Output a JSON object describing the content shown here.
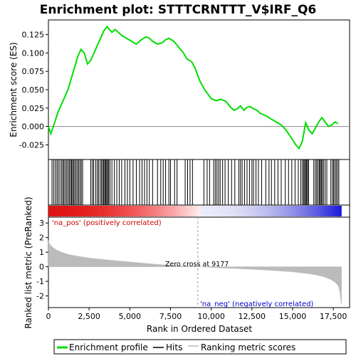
{
  "chart_data": {
    "type": "line",
    "title": "Enrichment plot: STTTCRNTTT_V$IRF_Q6",
    "xlabel": "Rank in Ordered Dataset",
    "x_range": [
      0,
      18500
    ],
    "x_ticks": [
      0,
      2500,
      5000,
      7500,
      10000,
      12500,
      15000,
      17500
    ],
    "x_tick_labels": [
      "0",
      "2,500",
      "5,000",
      "7,500",
      "10,000",
      "12,500",
      "15,000",
      "17,500"
    ],
    "panels": {
      "enrichment": {
        "ylabel": "Enrichment score (ES)",
        "ylim": [
          -0.045,
          0.145
        ],
        "y_ticks": [
          -0.025,
          0.0,
          0.025,
          0.05,
          0.075,
          0.1,
          0.125
        ],
        "y_tick_labels": [
          "-0.025",
          "0.000",
          "0.025",
          "0.050",
          "0.075",
          "0.100",
          "0.125"
        ],
        "series": [
          {
            "name": "Enrichment profile",
            "color": "#00dd00",
            "x": [
              0,
              150,
              300,
              450,
              600,
              800,
              1000,
              1200,
              1400,
              1600,
              1800,
              2000,
              2200,
              2400,
              2600,
              2800,
              3000,
              3200,
              3400,
              3600,
              3700,
              3900,
              4100,
              4300,
              4500,
              4800,
              5100,
              5400,
              5700,
              6000,
              6200,
              6400,
              6700,
              7000,
              7200,
              7400,
              7700,
              8000,
              8300,
              8500,
              8800,
              9000,
              9300,
              9600,
              10000,
              10300,
              10600,
              10900,
              11200,
              11400,
              11600,
              11800,
              12000,
              12200,
              12400,
              12600,
              12800,
              13000,
              13200,
              13400,
              13700,
              14000,
              14300,
              14600,
              14900,
              15200,
              15400,
              15600,
              15800,
              16000,
              16200,
              16400,
              16600,
              16800,
              17000,
              17200,
              17400,
              17600,
              17800
            ],
            "y": [
              0.0,
              -0.01,
              0.0,
              0.01,
              0.02,
              0.03,
              0.04,
              0.05,
              0.065,
              0.08,
              0.095,
              0.105,
              0.1,
              0.085,
              0.09,
              0.1,
              0.11,
              0.12,
              0.13,
              0.136,
              0.133,
              0.128,
              0.132,
              0.128,
              0.124,
              0.12,
              0.116,
              0.112,
              0.118,
              0.122,
              0.12,
              0.116,
              0.112,
              0.114,
              0.118,
              0.12,
              0.116,
              0.108,
              0.1,
              0.092,
              0.088,
              0.08,
              0.062,
              0.05,
              0.038,
              0.035,
              0.037,
              0.034,
              0.026,
              0.022,
              0.024,
              0.028,
              0.022,
              0.026,
              0.027,
              0.024,
              0.022,
              0.018,
              0.016,
              0.014,
              0.01,
              0.006,
              0.002,
              -0.005,
              -0.015,
              -0.025,
              -0.03,
              -0.02,
              0.005,
              -0.005,
              -0.01,
              -0.002,
              0.006,
              0.012,
              0.006,
              0.0,
              0.002,
              0.006,
              0.004
            ]
          }
        ]
      },
      "ranked_metric": {
        "ylabel": "Ranked list metric (PreRanked)",
        "ylim": [
          -2.8,
          3.4
        ],
        "y_ticks": [
          -2,
          -1,
          0,
          1,
          2,
          3
        ],
        "y_tick_labels": [
          "-2",
          "-1",
          "0",
          "1",
          "2",
          "3"
        ],
        "series": [
          {
            "name": "Ranking metric scores",
            "color": "#bbbbbb",
            "x": [
              0,
              50,
              150,
              300,
              500,
              800,
              1200,
              1800,
              2500,
              3500,
              4500,
              5500,
              6500,
              7500,
              8500,
              9177,
              10000,
              11000,
              12000,
              13000,
              14000,
              15000,
              15800,
              16400,
              16900,
              17300,
              17600,
              17800,
              17900,
              17950,
              18000
            ],
            "y": [
              1.8,
              1.6,
              1.45,
              1.3,
              1.15,
              1.0,
              0.85,
              0.72,
              0.6,
              0.48,
              0.38,
              0.28,
              0.18,
              0.1,
              0.04,
              0.0,
              -0.05,
              -0.1,
              -0.15,
              -0.2,
              -0.27,
              -0.35,
              -0.45,
              -0.55,
              -0.68,
              -0.85,
              -1.05,
              -1.3,
              -1.7,
              -2.2,
              -2.6
            ]
          }
        ],
        "annotations": [
          "'na_pos' (positively correlated)",
          "Zero cross at 9177",
          "'na_neg' (negatively correlated)"
        ],
        "zero_cross": 9177
      }
    },
    "legend": {
      "placement": "bottom",
      "entries": [
        {
          "label": "Enrichment profile",
          "color": "#00dd00"
        },
        {
          "label": "Hits",
          "color": "#000000"
        },
        {
          "label": "Ranking metric scores",
          "color": "#bbbbbb"
        }
      ]
    },
    "hits": [
      220,
      320,
      420,
      520,
      600,
      700,
      800,
      880,
      950,
      1030,
      1120,
      1200,
      1280,
      1350,
      1420,
      1480,
      1550,
      1620,
      1700,
      1780,
      1860,
      1940,
      2020,
      2100,
      2600,
      2700,
      2780,
      2900,
      3000,
      3080,
      3180,
      3260,
      3340,
      3400,
      3460,
      3520,
      3580,
      3640,
      3700,
      3780,
      3900,
      4050,
      4200,
      4350,
      4500,
      4700,
      4850,
      5000,
      5200,
      5400,
      5600,
      5750,
      5900,
      6050,
      6200,
      6400,
      6700,
      6900,
      7050,
      7200,
      7400,
      7500,
      7750,
      7900,
      8400,
      8550,
      8700,
      8850,
      9550,
      9750,
      9900,
      10150,
      10250,
      10350,
      10450,
      10550,
      10700,
      10850,
      11050,
      11250,
      11450,
      11700,
      11800,
      11900,
      12050,
      12200,
      12350,
      12500,
      12600,
      12750,
      12900,
      13100,
      13350,
      13550,
      13700,
      13900,
      14100,
      14300,
      14550,
      14750,
      14950,
      15150,
      15350,
      15500,
      15600,
      15680,
      15740,
      15800,
      15860,
      15920,
      15980,
      16300,
      16400,
      16480,
      16560,
      16640,
      16700,
      16760,
      16820,
      16900,
      17000,
      17100,
      17350,
      17450,
      17520,
      17600,
      17680,
      17760,
      17840
    ]
  }
}
